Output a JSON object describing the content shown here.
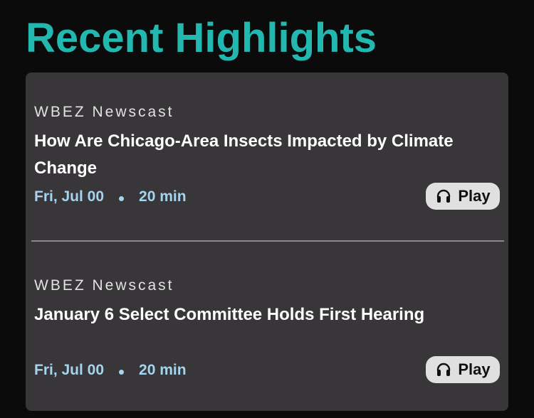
{
  "section": {
    "title": "Recent Highlights"
  },
  "episodes": [
    {
      "source": "WBEZ Newscast",
      "title": "How Are Chicago-Area Insects Impacted by Climate Change",
      "date": "Fri, Jul 00",
      "duration": "20 min",
      "play_label": "Play",
      "play_icon": "headphones-icon"
    },
    {
      "source": "WBEZ Newscast",
      "title": "January 6 Select Committee Holds First Hearing",
      "date": "Fri, Jul 00",
      "duration": "20 min",
      "play_label": "Play",
      "play_icon": "headphones-icon"
    }
  ],
  "colors": {
    "background": "#0b0b0b",
    "title": "#22b8b0",
    "panel": "#383638",
    "meta": "#a6d4ec",
    "play_button": "#e0e0e0"
  }
}
